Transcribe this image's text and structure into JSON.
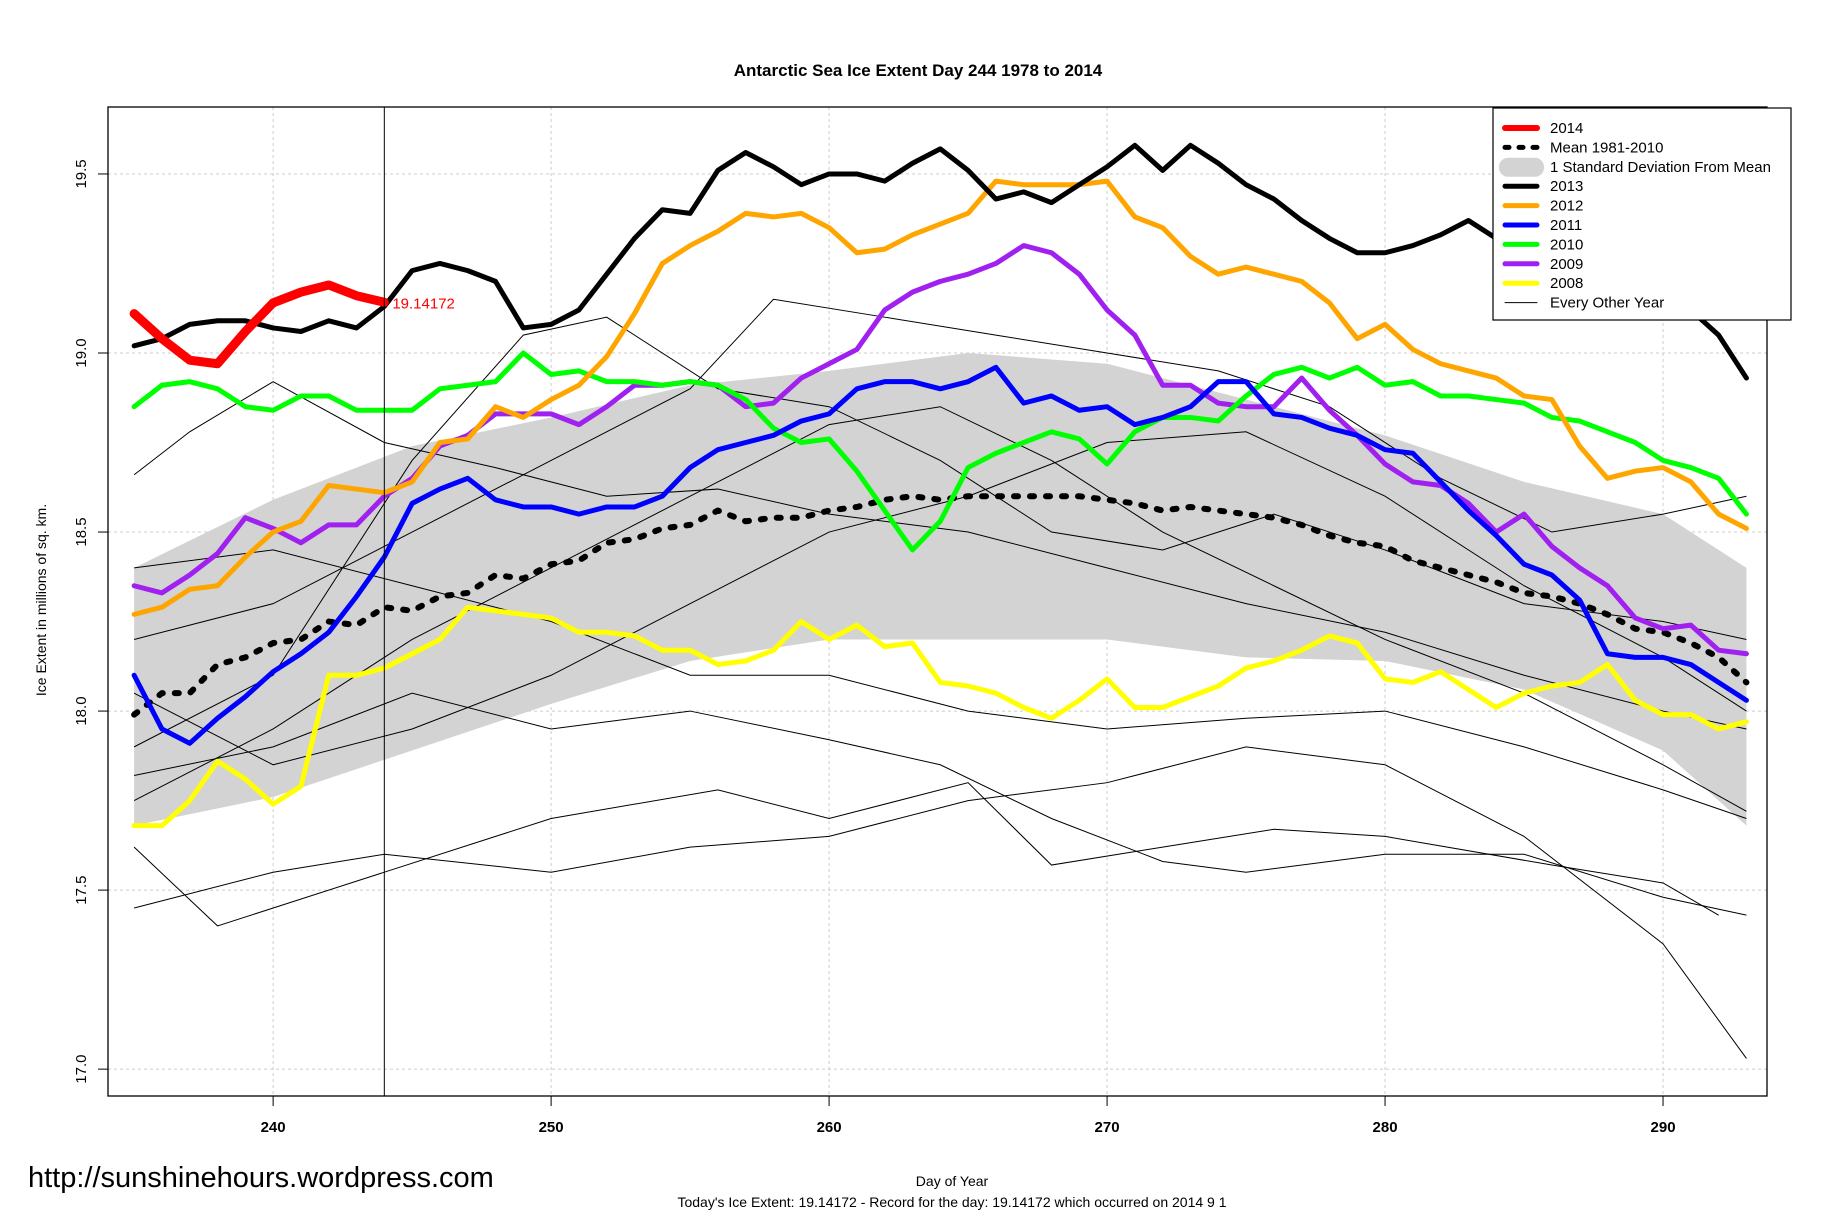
{
  "chart_data": {
    "type": "line",
    "title": "Antarctic Sea Ice Extent Day 244 1978 to 2014",
    "xlabel": "Day of Year",
    "ylabel": "Ice Extent in millions of sq. km.",
    "subtitle": "Today's Ice Extent: 19.14172  - Record for the day: 19.14172 which occurred on 2014 9 1",
    "xlim": [
      234.06,
      293.74
    ],
    "ylim": [
      16.925,
      19.687
    ],
    "x_ticks": [
      240,
      250,
      260,
      270,
      280,
      290
    ],
    "x_tick_labels": [
      "240",
      "250",
      "260",
      "270",
      "280",
      "290"
    ],
    "y_ticks": [
      17.0,
      17.5,
      18.0,
      18.5,
      19.0,
      19.5
    ],
    "y_tick_labels": [
      "17.0",
      "17.5",
      "18.0",
      "18.5",
      "19.0",
      "19.5"
    ],
    "grid": true,
    "current_day": 244,
    "current_value_label": "19.14172",
    "legend_position": "top-right",
    "legend": [
      {
        "label": "2014",
        "color": "#ff0000",
        "style": "thick"
      },
      {
        "label": "Mean 1981-2010",
        "color": "#000000",
        "style": "dashed"
      },
      {
        "label": "1 Standard Deviation From Mean",
        "color": "#d3d3d3",
        "style": "band"
      },
      {
        "label": "2013",
        "color": "#000000",
        "style": "solid"
      },
      {
        "label": "2012",
        "color": "#ffa500",
        "style": "solid"
      },
      {
        "label": "2011",
        "color": "#0000ff",
        "style": "solid"
      },
      {
        "label": "2010",
        "color": "#00ff00",
        "style": "solid"
      },
      {
        "label": "2009",
        "color": "#a020f0",
        "style": "solid"
      },
      {
        "label": "2008",
        "color": "#ffff00",
        "style": "solid"
      },
      {
        "label": "Every Other Year",
        "color": "#000000",
        "style": "thin"
      }
    ],
    "x_start": 235,
    "sd_band": {
      "x": [
        235,
        240,
        245,
        250,
        255,
        260,
        265,
        270,
        275,
        280,
        285,
        290,
        293
      ],
      "upper": [
        18.4,
        18.59,
        18.74,
        18.82,
        18.91,
        18.95,
        19.0,
        18.97,
        18.87,
        18.77,
        18.64,
        18.55,
        18.4
      ],
      "lower": [
        17.68,
        17.76,
        17.89,
        18.02,
        18.14,
        18.2,
        18.2,
        18.2,
        18.15,
        18.14,
        18.06,
        17.89,
        17.68
      ]
    },
    "other_years": [
      {
        "x": [
          235,
          240,
          244,
          250,
          255,
          260,
          265,
          270,
          275,
          280,
          285,
          290,
          293
        ],
        "values": [
          17.45,
          17.55,
          17.6,
          17.55,
          17.62,
          17.65,
          17.75,
          17.8,
          17.9,
          17.85,
          17.65,
          17.35,
          17.03
        ]
      },
      {
        "x": [
          235,
          238,
          244,
          250,
          256,
          260,
          265,
          268,
          272,
          276,
          280,
          286,
          290,
          292
        ],
        "values": [
          17.62,
          17.4,
          17.55,
          17.7,
          17.78,
          17.7,
          17.8,
          17.57,
          17.62,
          17.67,
          17.65,
          17.57,
          17.52,
          17.43
        ]
      },
      {
        "x": [
          235,
          240,
          245,
          250,
          255,
          260,
          264,
          268,
          272,
          275,
          280,
          285,
          290,
          293
        ],
        "values": [
          17.82,
          17.9,
          18.05,
          17.95,
          18.0,
          17.92,
          17.85,
          17.7,
          17.58,
          17.55,
          17.6,
          17.6,
          17.48,
          17.43
        ]
      },
      {
        "x": [
          235,
          237,
          240,
          244,
          248,
          252,
          256,
          260,
          265,
          270,
          275,
          280,
          285,
          290,
          293
        ],
        "values": [
          18.66,
          18.78,
          18.92,
          18.75,
          18.68,
          18.6,
          18.62,
          18.55,
          18.5,
          18.4,
          18.3,
          18.22,
          18.1,
          18.0,
          17.95
        ]
      },
      {
        "x": [
          235,
          240,
          245,
          250,
          255,
          258,
          262,
          266,
          270,
          274,
          278,
          282,
          286,
          290,
          293
        ],
        "values": [
          18.2,
          18.3,
          18.5,
          18.7,
          18.9,
          19.15,
          19.1,
          19.05,
          19.0,
          18.95,
          18.85,
          18.65,
          18.5,
          18.55,
          18.6
        ]
      },
      {
        "x": [
          235,
          240,
          245,
          250,
          255,
          260,
          264,
          268,
          272,
          276,
          280,
          285,
          290,
          293
        ],
        "values": [
          17.75,
          17.95,
          18.2,
          18.4,
          18.6,
          18.8,
          18.85,
          18.7,
          18.5,
          18.35,
          18.2,
          18.05,
          17.85,
          17.72
        ]
      },
      {
        "x": [
          235,
          240,
          245,
          250,
          255,
          260,
          265,
          270,
          275,
          280,
          285,
          290,
          293
        ],
        "values": [
          18.05,
          17.85,
          17.95,
          18.1,
          18.3,
          18.5,
          18.6,
          18.75,
          18.78,
          18.6,
          18.35,
          18.15,
          18.0
        ]
      },
      {
        "x": [
          235,
          240,
          245,
          250,
          255,
          260,
          265,
          270,
          275,
          280,
          285,
          290,
          293
        ],
        "values": [
          18.4,
          18.45,
          18.35,
          18.25,
          18.1,
          18.1,
          18.0,
          17.95,
          17.98,
          18.0,
          17.9,
          17.78,
          17.7
        ]
      },
      {
        "x": [
          235,
          240,
          245,
          249,
          252,
          256,
          260,
          264,
          268,
          272,
          276,
          280,
          285,
          290,
          293
        ],
        "values": [
          17.9,
          18.1,
          18.7,
          19.05,
          19.1,
          18.9,
          18.85,
          18.7,
          18.5,
          18.45,
          18.55,
          18.45,
          18.3,
          18.25,
          18.2
        ]
      }
    ],
    "series": [
      {
        "name": "Mean 1981-2010",
        "color": "#000000",
        "style": "dashed",
        "values": [
          17.99,
          18.05,
          18.05,
          18.13,
          18.15,
          18.19,
          18.2,
          18.25,
          18.24,
          18.29,
          18.28,
          18.32,
          18.33,
          18.38,
          18.37,
          18.41,
          18.42,
          18.47,
          18.48,
          18.51,
          18.52,
          18.56,
          18.53,
          18.54,
          18.54,
          18.56,
          18.57,
          18.59,
          18.6,
          18.59,
          18.6,
          18.6,
          18.6,
          18.6,
          18.6,
          18.59,
          18.58,
          18.56,
          18.57,
          18.56,
          18.55,
          18.54,
          18.52,
          18.49,
          18.47,
          18.46,
          18.42,
          18.4,
          18.38,
          18.36,
          18.33,
          18.32,
          18.3,
          18.27,
          18.23,
          18.22,
          18.19,
          18.15,
          18.08
        ]
      },
      {
        "name": "2008",
        "color": "#ffff00",
        "style": "solid",
        "values": [
          17.68,
          17.68,
          17.75,
          17.86,
          17.81,
          17.74,
          17.79,
          18.1,
          18.1,
          18.12,
          18.16,
          18.2,
          18.29,
          18.28,
          18.27,
          18.26,
          18.22,
          18.22,
          18.21,
          18.17,
          18.17,
          18.13,
          18.14,
          18.17,
          18.25,
          18.2,
          18.24,
          18.18,
          18.19,
          18.08,
          18.07,
          18.05,
          18.01,
          17.98,
          18.03,
          18.09,
          18.01,
          18.01,
          18.04,
          18.07,
          18.12,
          18.14,
          18.17,
          18.21,
          18.19,
          18.09,
          18.08,
          18.11,
          18.06,
          18.01,
          18.05,
          18.07,
          18.08,
          18.13,
          18.03,
          17.99,
          17.99,
          17.95,
          17.97
        ]
      },
      {
        "name": "2009",
        "color": "#a020f0",
        "style": "solid",
        "values": [
          18.35,
          18.33,
          18.38,
          18.44,
          18.54,
          18.51,
          18.47,
          18.52,
          18.52,
          18.6,
          18.65,
          18.74,
          18.77,
          18.83,
          18.83,
          18.83,
          18.8,
          18.85,
          18.91,
          18.91,
          18.92,
          18.91,
          18.85,
          18.86,
          18.93,
          18.97,
          19.01,
          19.12,
          19.17,
          19.2,
          19.22,
          19.25,
          19.3,
          19.28,
          19.22,
          19.12,
          19.05,
          18.91,
          18.91,
          18.86,
          18.85,
          18.85,
          18.93,
          18.84,
          18.77,
          18.69,
          18.64,
          18.63,
          18.58,
          18.5,
          18.55,
          18.46,
          18.4,
          18.35,
          18.26,
          18.23,
          18.24,
          18.17,
          18.16
        ]
      },
      {
        "name": "2010",
        "color": "#00ff00",
        "style": "solid",
        "values": [
          18.85,
          18.91,
          18.92,
          18.9,
          18.85,
          18.84,
          18.88,
          18.88,
          18.84,
          18.84,
          18.84,
          18.9,
          18.91,
          18.92,
          19.0,
          18.94,
          18.95,
          18.92,
          18.92,
          18.91,
          18.92,
          18.91,
          18.87,
          18.79,
          18.75,
          18.76,
          18.67,
          18.56,
          18.45,
          18.53,
          18.68,
          18.72,
          18.75,
          18.78,
          18.76,
          18.69,
          18.78,
          18.82,
          18.82,
          18.81,
          18.88,
          18.94,
          18.96,
          18.93,
          18.96,
          18.91,
          18.92,
          18.88,
          18.88,
          18.87,
          18.86,
          18.82,
          18.81,
          18.78,
          18.75,
          18.7,
          18.68,
          18.65,
          18.55
        ]
      },
      {
        "name": "2011",
        "color": "#0000ff",
        "style": "solid",
        "values": [
          18.1,
          17.95,
          17.91,
          17.98,
          18.04,
          18.11,
          18.16,
          18.22,
          18.32,
          18.43,
          18.58,
          18.62,
          18.65,
          18.59,
          18.57,
          18.57,
          18.55,
          18.57,
          18.57,
          18.6,
          18.68,
          18.73,
          18.75,
          18.77,
          18.81,
          18.83,
          18.9,
          18.92,
          18.92,
          18.9,
          18.92,
          18.96,
          18.86,
          18.88,
          18.84,
          18.85,
          18.8,
          18.82,
          18.85,
          18.92,
          18.92,
          18.83,
          18.82,
          18.79,
          18.77,
          18.73,
          18.72,
          18.64,
          18.56,
          18.49,
          18.41,
          18.38,
          18.31,
          18.16,
          18.15,
          18.15,
          18.13,
          18.08,
          18.03
        ]
      },
      {
        "name": "2012",
        "color": "#ffa500",
        "style": "solid",
        "values": [
          18.27,
          18.29,
          18.34,
          18.35,
          18.43,
          18.5,
          18.53,
          18.63,
          18.62,
          18.61,
          18.64,
          18.75,
          18.76,
          18.85,
          18.82,
          18.87,
          18.91,
          18.99,
          19.11,
          19.25,
          19.3,
          19.34,
          19.39,
          19.38,
          19.39,
          19.35,
          19.28,
          19.29,
          19.33,
          19.36,
          19.39,
          19.48,
          19.47,
          19.47,
          19.47,
          19.48,
          19.38,
          19.35,
          19.27,
          19.22,
          19.24,
          19.22,
          19.2,
          19.14,
          19.04,
          19.08,
          19.01,
          18.97,
          18.95,
          18.93,
          18.88,
          18.87,
          18.74,
          18.65,
          18.67,
          18.68,
          18.64,
          18.55,
          18.51
        ]
      },
      {
        "name": "2013",
        "color": "#000000",
        "style": "solid",
        "values": [
          19.02,
          19.04,
          19.08,
          19.09,
          19.09,
          19.07,
          19.06,
          19.09,
          19.07,
          19.13,
          19.23,
          19.25,
          19.23,
          19.2,
          19.07,
          19.08,
          19.12,
          19.22,
          19.32,
          19.4,
          19.39,
          19.51,
          19.56,
          19.52,
          19.47,
          19.5,
          19.5,
          19.48,
          19.53,
          19.57,
          19.51,
          19.43,
          19.45,
          19.42,
          19.47,
          19.52,
          19.58,
          19.51,
          19.58,
          19.53,
          19.47,
          19.43,
          19.37,
          19.32,
          19.28,
          19.28,
          19.3,
          19.33,
          19.37,
          19.32,
          19.23,
          19.25,
          19.28,
          19.3,
          19.24,
          19.15,
          19.12,
          19.05,
          18.93
        ]
      },
      {
        "name": "2014",
        "color": "#ff0000",
        "style": "thick",
        "values": [
          19.11,
          19.04,
          18.98,
          18.97,
          19.06,
          19.14,
          19.17,
          19.19,
          19.16,
          19.14172
        ]
      }
    ]
  },
  "watermark": "http://sunshinehours.wordpress.com"
}
